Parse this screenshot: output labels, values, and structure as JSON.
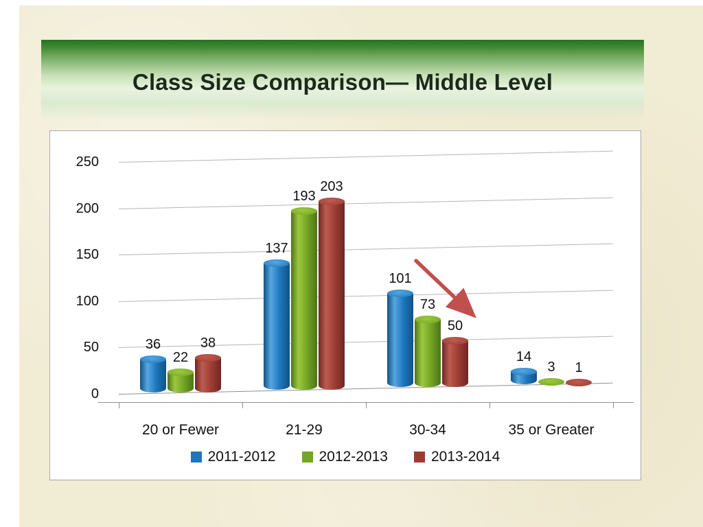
{
  "slide": {
    "title": "Class Size Comparison— Middle Level",
    "background_color": "#f1ecd4",
    "banner_color_top": "#27731f",
    "banner_color_bottom": "#e9f3e0"
  },
  "chart_data": {
    "type": "bar",
    "subtype": "3d-cylinder",
    "title": "",
    "xlabel": "",
    "ylabel": "",
    "categories": [
      "20 or Fewer",
      "21-29",
      "30-34",
      "35 or Greater"
    ],
    "series": [
      {
        "name": "2011-2012",
        "values": [
          36,
          137,
          101,
          14
        ],
        "color": "#1e76bc",
        "color_dark": "#125286",
        "color_light": "#56a7e0"
      },
      {
        "name": "2012-2013",
        "values": [
          22,
          193,
          73,
          3
        ],
        "color": "#74a524",
        "color_dark": "#4e731a",
        "color_light": "#9cc83e"
      },
      {
        "name": "2013-2014",
        "values": [
          38,
          203,
          50,
          1
        ],
        "color": "#9e3c34",
        "color_dark": "#6e2723",
        "color_light": "#bd5c50"
      }
    ],
    "ylim": [
      0,
      250
    ],
    "yticks": [
      0,
      50,
      100,
      150,
      200,
      250
    ],
    "grid": true,
    "legend_position": "bottom",
    "annotations": [
      {
        "type": "arrow",
        "direction": "down-right",
        "color": "#c0504d"
      }
    ]
  }
}
